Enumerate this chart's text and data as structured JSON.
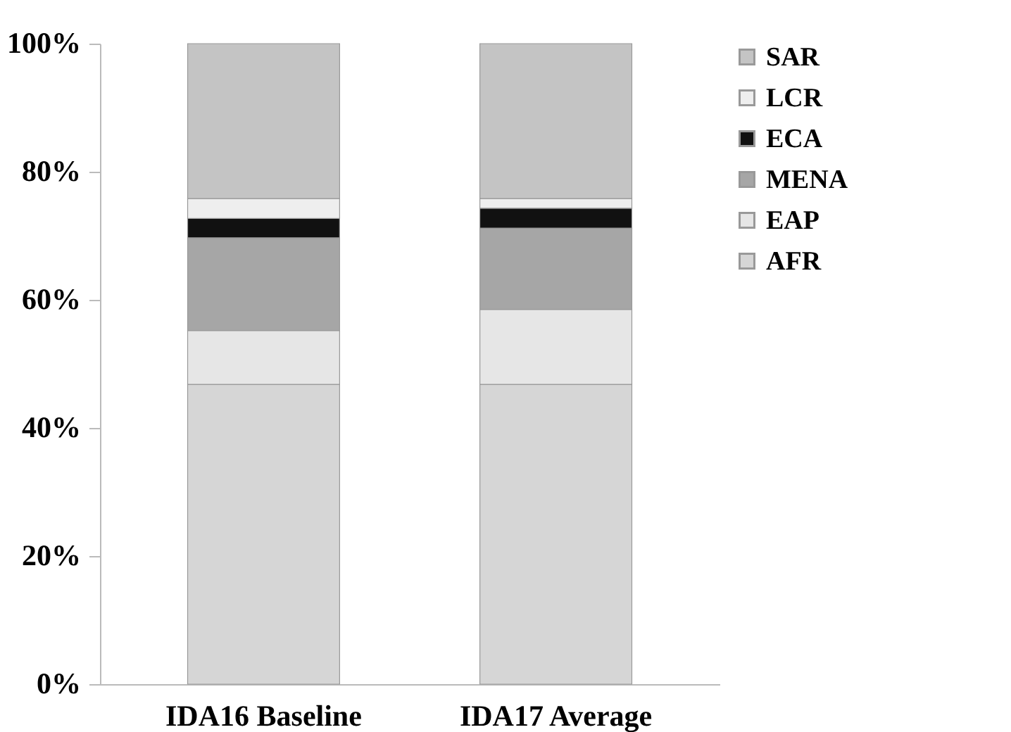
{
  "chart_data": {
    "type": "bar",
    "stacked": true,
    "categories": [
      "IDA16 Baseline",
      "IDA17 Average"
    ],
    "series": [
      {
        "name": "AFR",
        "color": "#d6d6d6",
        "values": [
          46.8,
          46.8
        ]
      },
      {
        "name": "EAP",
        "color": "#e6e6e6",
        "values": [
          8.4,
          11.7
        ]
      },
      {
        "name": "MENA",
        "color": "#a6a6a6",
        "values": [
          14.5,
          12.7
        ]
      },
      {
        "name": "ECA",
        "color": "#111111",
        "values": [
          3.0,
          3.1
        ]
      },
      {
        "name": "LCR",
        "color": "#eeeeee",
        "values": [
          3.1,
          1.5
        ]
      },
      {
        "name": "SAR",
        "color": "#c4c4c4",
        "values": [
          24.2,
          24.2
        ]
      }
    ],
    "ylim": [
      0,
      100
    ],
    "yticks": [
      {
        "value": 0,
        "label": "0%"
      },
      {
        "value": 20,
        "label": "20%"
      },
      {
        "value": 40,
        "label": "40%"
      },
      {
        "value": 60,
        "label": "60%"
      },
      {
        "value": 80,
        "label": "80%"
      },
      {
        "value": 100,
        "label": "100%"
      }
    ],
    "grid": false,
    "legend": "right"
  }
}
